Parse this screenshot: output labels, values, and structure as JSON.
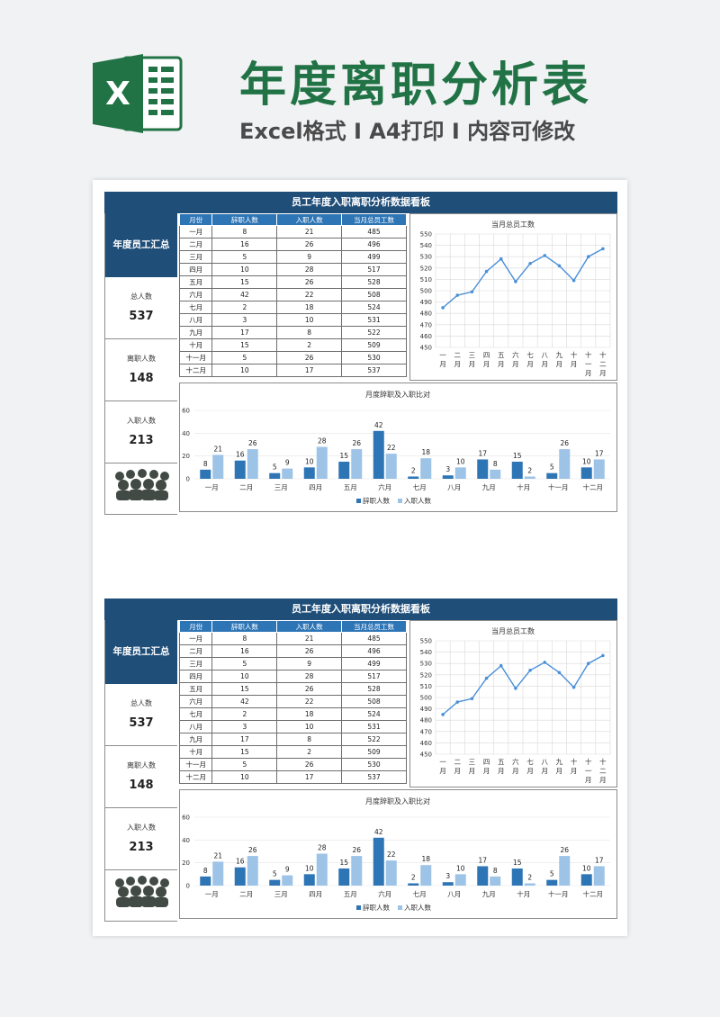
{
  "page": {
    "title": "年度离职分析表",
    "subtitle": "Excel格式 Ⅰ A4打印 Ⅰ 内容可修改",
    "logo_letter": "X",
    "colors": {
      "brand_green": "#217346",
      "navy": "#1f4e79",
      "header_blue": "#2e75b6",
      "dark_bar": "#2e75b6",
      "light_bar": "#9dc3e6",
      "line": "#4a90d9"
    }
  },
  "dashboards": [
    {
      "title": "员工年度入职离职分析数据看板",
      "summary": {
        "heading": "年度员工汇总",
        "total_label": "总人数",
        "total_value": "537",
        "leave_label": "离职人数",
        "leave_value": "148",
        "join_label": "入职人数",
        "join_value": "213"
      },
      "table": {
        "headers": [
          "月份",
          "辞职人数",
          "入职人数",
          "当月总员工数"
        ],
        "rows": [
          [
            "一月",
            "8",
            "21",
            "485"
          ],
          [
            "二月",
            "16",
            "26",
            "496"
          ],
          [
            "三月",
            "5",
            "9",
            "499"
          ],
          [
            "四月",
            "10",
            "28",
            "517"
          ],
          [
            "五月",
            "15",
            "26",
            "528"
          ],
          [
            "六月",
            "42",
            "22",
            "508"
          ],
          [
            "七月",
            "2",
            "18",
            "524"
          ],
          [
            "八月",
            "3",
            "10",
            "531"
          ],
          [
            "九月",
            "17",
            "8",
            "522"
          ],
          [
            "十月",
            "15",
            "2",
            "509"
          ],
          [
            "十一月",
            "5",
            "26",
            "530"
          ],
          [
            "十二月",
            "10",
            "17",
            "537"
          ]
        ]
      }
    },
    {
      "title": "员工年度入职离职分析数据看板",
      "summary": {
        "heading": "年度员工汇总",
        "total_label": "总人数",
        "total_value": "537",
        "leave_label": "离职人数",
        "leave_value": "148",
        "join_label": "入职人数",
        "join_value": "213"
      },
      "table": {
        "headers": [
          "月份",
          "辞职人数",
          "入职人数",
          "当月总员工数"
        ],
        "rows": [
          [
            "一月",
            "8",
            "21",
            "485"
          ],
          [
            "二月",
            "16",
            "26",
            "496"
          ],
          [
            "三月",
            "5",
            "9",
            "499"
          ],
          [
            "四月",
            "10",
            "28",
            "517"
          ],
          [
            "五月",
            "15",
            "26",
            "528"
          ],
          [
            "六月",
            "42",
            "22",
            "508"
          ],
          [
            "七月",
            "2",
            "18",
            "524"
          ],
          [
            "八月",
            "3",
            "10",
            "531"
          ],
          [
            "九月",
            "17",
            "8",
            "522"
          ],
          [
            "十月",
            "15",
            "2",
            "509"
          ],
          [
            "十一月",
            "5",
            "26",
            "530"
          ],
          [
            "十二月",
            "10",
            "17",
            "537"
          ]
        ]
      }
    }
  ],
  "chart_data": [
    {
      "type": "line",
      "title": "当月总员工数",
      "categories": [
        "一月",
        "二月",
        "三月",
        "四月",
        "五月",
        "六月",
        "七月",
        "八月",
        "九月",
        "十月",
        "十一月",
        "十二月"
      ],
      "x_tick_labels": [
        [
          "一",
          "月"
        ],
        [
          "二",
          "月"
        ],
        [
          "三",
          "月"
        ],
        [
          "四",
          "月"
        ],
        [
          "五",
          "月"
        ],
        [
          "六",
          "月"
        ],
        [
          "七",
          "月"
        ],
        [
          "八",
          "月"
        ],
        [
          "九",
          "月"
        ],
        [
          "十",
          "月"
        ],
        [
          "十",
          "一",
          "月"
        ],
        [
          "十",
          "二",
          "月"
        ]
      ],
      "series": [
        {
          "values": [
            485,
            496,
            499,
            517,
            528,
            508,
            524,
            531,
            522,
            509,
            530,
            537
          ]
        }
      ],
      "ylim": [
        450,
        550
      ],
      "yticks": [
        450,
        460,
        470,
        480,
        490,
        500,
        510,
        520,
        530,
        540,
        550
      ],
      "grid": true
    },
    {
      "type": "bar",
      "title": "月度辞职及入职比对",
      "categories": [
        "一月",
        "二月",
        "三月",
        "四月",
        "五月",
        "六月",
        "七月",
        "八月",
        "九月",
        "十月",
        "十一月",
        "十二月"
      ],
      "series": [
        {
          "name": "辞职人数",
          "values": [
            8,
            16,
            5,
            10,
            15,
            42,
            2,
            3,
            17,
            15,
            5,
            10
          ]
        },
        {
          "name": "入职人数",
          "values": [
            21,
            26,
            9,
            28,
            26,
            22,
            18,
            10,
            8,
            2,
            26,
            17
          ]
        }
      ],
      "ylim": [
        0,
        60
      ],
      "yticks": [
        0,
        20,
        40,
        60
      ],
      "legend": "bottom",
      "grid": true
    }
  ]
}
